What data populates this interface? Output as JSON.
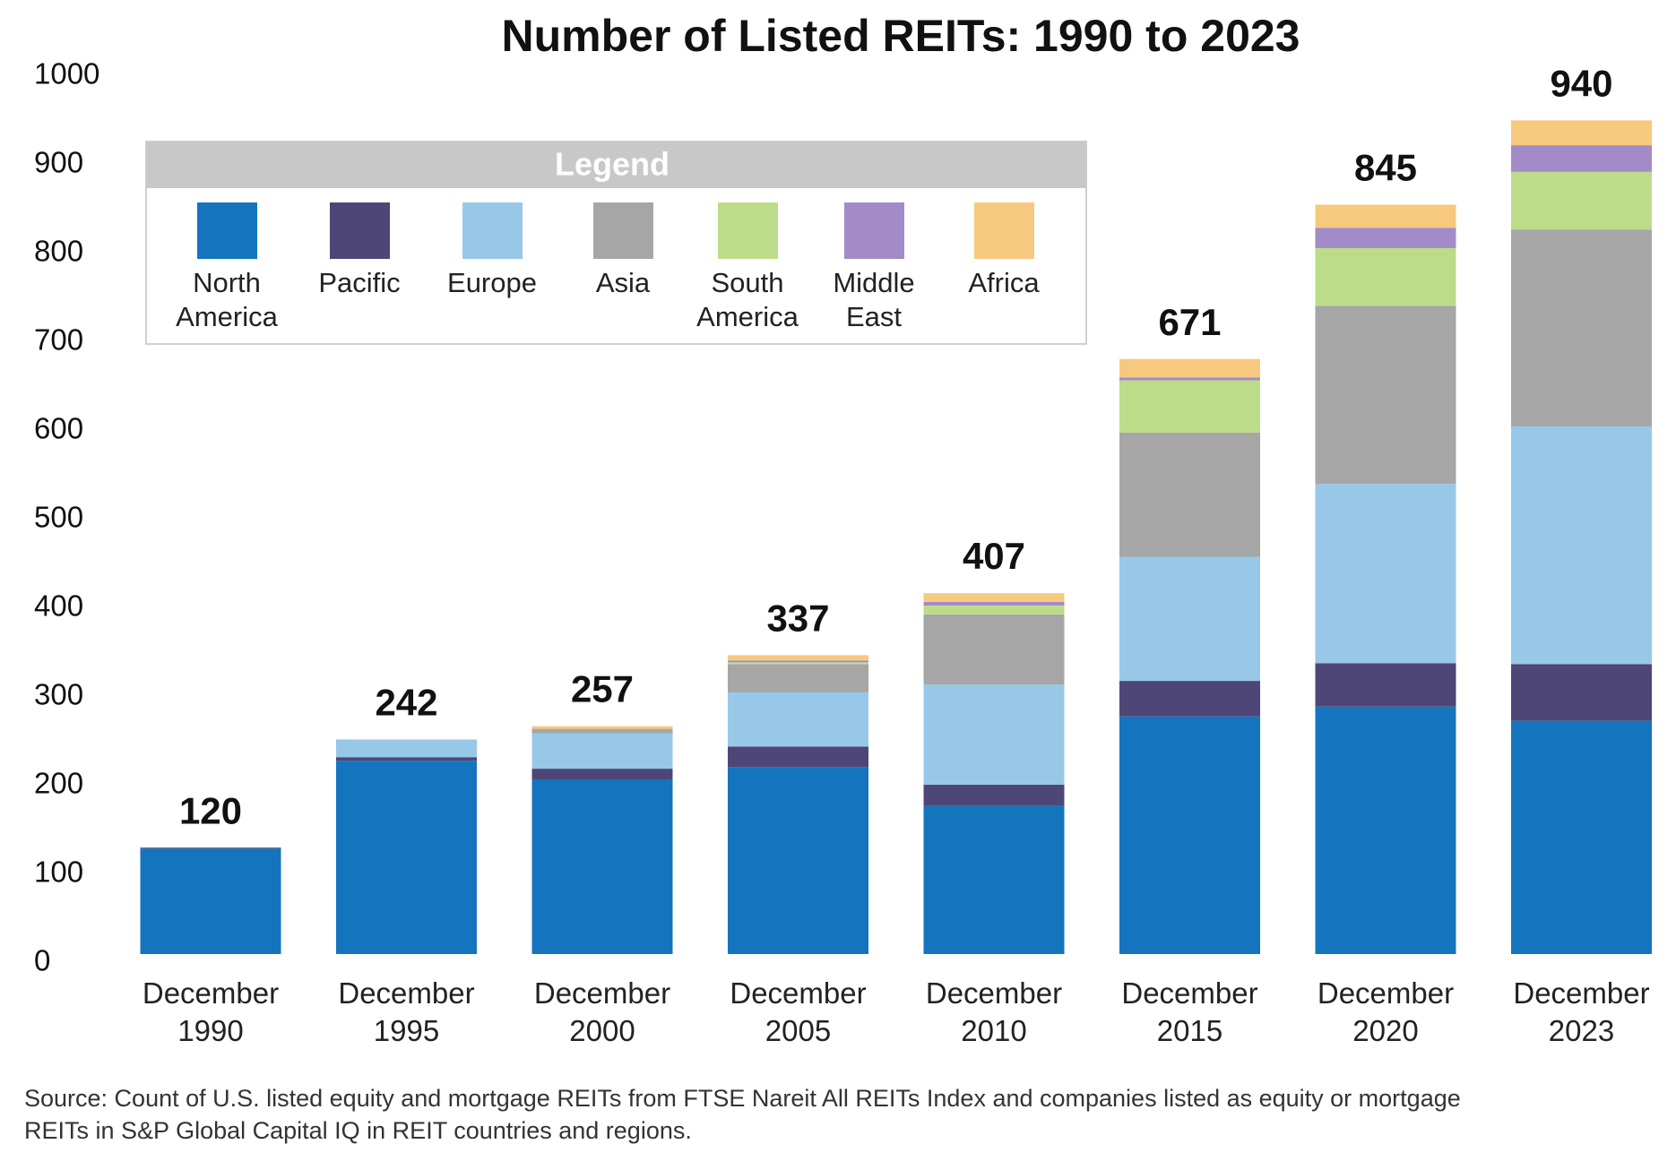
{
  "chart_data": {
    "type": "stacked-bar",
    "title": "Number of Listed REITs: 1990 to 2023",
    "legend_title": "Legend",
    "categories": [
      "December 1990",
      "December 1995",
      "December 2000",
      "December 2005",
      "December 2010",
      "December 2015",
      "December 2020",
      "December 2023"
    ],
    "totals": [
      120,
      242,
      257,
      337,
      407,
      671,
      845,
      940
    ],
    "series": [
      {
        "name": "North America",
        "color": "#1475be",
        "values": [
          119,
          218,
          197,
          211,
          167,
          268,
          279,
          263
        ]
      },
      {
        "name": "Pacific",
        "color": "#4e4677",
        "values": [
          1,
          4,
          12,
          23,
          24,
          40,
          49,
          64
        ]
      },
      {
        "name": "Europe",
        "color": "#98c8e8",
        "values": [
          0,
          20,
          40,
          61,
          113,
          140,
          202,
          268
        ]
      },
      {
        "name": "Asia",
        "color": "#a6a6a6",
        "values": [
          0,
          0,
          5,
          32,
          79,
          140,
          201,
          222
        ]
      },
      {
        "name": "South America",
        "color": "#bcdc8a",
        "values": [
          0,
          0,
          0,
          2,
          10,
          59,
          65,
          65
        ]
      },
      {
        "name": "Middle East",
        "color": "#a28bc6",
        "values": [
          0,
          0,
          0,
          2,
          4,
          3,
          23,
          30
        ]
      },
      {
        "name": "Africa",
        "color": "#f7c97e",
        "values": [
          0,
          0,
          3,
          6,
          10,
          21,
          26,
          28
        ]
      }
    ],
    "ylim": [
      0,
      1000
    ],
    "yticks": [
      0,
      100,
      200,
      300,
      400,
      500,
      600,
      700,
      800,
      900,
      1000
    ],
    "source": "Source: Count of U.S. listed equity and mortgage REITs from FTSE Nareit All REITs Index and companies listed as equity or mortgage REITs in S&P Global Capital IQ in REIT countries and regions."
  }
}
